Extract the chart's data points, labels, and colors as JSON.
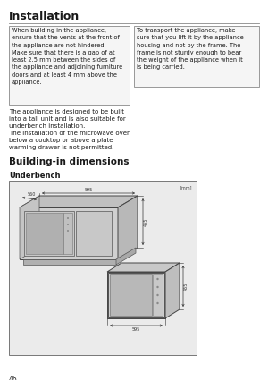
{
  "title": "Installation",
  "box1_text": "When building in the appliance,\nensure that the vents at the front of\nthe appliance are not hindered.\nMake sure that there is a gap of at\nleast 2.5 mm between the sides of\nthe appliance and adjoining furniture\ndoors and at least 4 mm above the\nappliance.",
  "box2_text": "To transport the appliance, make\nsure that you lift it by the appliance\nhousing and not by the frame. The\nframe is not sturdy enough to bear\nthe weight of the appliance when it\nis being carried.",
  "para1": "The appliance is designed to be built\ninto a tall unit and is also suitable for\nunderbench installation.",
  "para2": "The installation of the microwave oven\nbelow a cooktop or above a plate\nwarming drawer is not permitted.",
  "section_title": "Building-in dimensions",
  "subsection_title": "Underbench",
  "page_number": "46",
  "mm_label": "[mm]",
  "bg_color": "#ffffff",
  "box_border_color": "#999999",
  "text_color": "#1a1a1a",
  "diagram_bg": "#ebebeb",
  "diagram_border": "#888888"
}
